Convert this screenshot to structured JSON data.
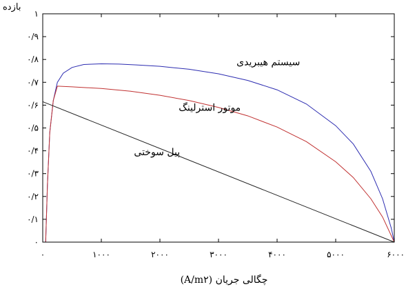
{
  "chart_data": {
    "type": "line",
    "title": "",
    "xlabel": "چگالی جریان (A/m۲)",
    "ylabel": "بازده",
    "xlim": [
      0,
      6000
    ],
    "ylim": [
      0,
      1
    ],
    "grid": false,
    "x_ticks": [
      {
        "value": 0,
        "label": "۰"
      },
      {
        "value": 1000,
        "label": "۱۰۰۰"
      },
      {
        "value": 2000,
        "label": "۲۰۰۰"
      },
      {
        "value": 3000,
        "label": "۳۰۰۰"
      },
      {
        "value": 4000,
        "label": "۴۰۰۰"
      },
      {
        "value": 5000,
        "label": "۵۰۰۰"
      },
      {
        "value": 6000,
        "label": "۶۰۰۰"
      }
    ],
    "y_ticks": [
      {
        "value": 0,
        "label": "۰"
      },
      {
        "value": 0.1,
        "label": "۰/۱"
      },
      {
        "value": 0.2,
        "label": "۰/۲"
      },
      {
        "value": 0.3,
        "label": "۰/۳"
      },
      {
        "value": 0.4,
        "label": "۰/۴"
      },
      {
        "value": 0.5,
        "label": "۰/۵"
      },
      {
        "value": 0.6,
        "label": "۰/۶"
      },
      {
        "value": 0.7,
        "label": "۰/۷"
      },
      {
        "value": 0.8,
        "label": "۰/۸"
      },
      {
        "value": 0.9,
        "label": "۰/۹"
      },
      {
        "value": 1,
        "label": "۱"
      }
    ],
    "series": [
      {
        "name": "سیستم هیبریدی",
        "color": "#2b2bb0",
        "x": [
          50,
          80,
          120,
          180,
          250,
          350,
          500,
          700,
          1000,
          1300,
          1600,
          2000,
          2500,
          3000,
          3500,
          4000,
          4500,
          5000,
          5300,
          5600,
          5800,
          5950,
          6000
        ],
        "y": [
          0.0,
          0.25,
          0.48,
          0.62,
          0.7,
          0.74,
          0.765,
          0.778,
          0.781,
          0.78,
          0.776,
          0.77,
          0.757,
          0.737,
          0.708,
          0.667,
          0.605,
          0.51,
          0.43,
          0.31,
          0.19,
          0.06,
          0.0
        ]
      },
      {
        "name": "موتور استرلینگ",
        "color": "#c03030",
        "x": [
          50,
          80,
          120,
          180,
          250,
          500,
          1000,
          1500,
          2000,
          2500,
          3000,
          3500,
          4000,
          4500,
          5000,
          5300,
          5600,
          5800,
          6000
        ],
        "y": [
          0.0,
          0.25,
          0.48,
          0.62,
          0.683,
          0.68,
          0.673,
          0.661,
          0.643,
          0.62,
          0.59,
          0.553,
          0.504,
          0.44,
          0.352,
          0.283,
          0.19,
          0.11,
          0.0
        ]
      },
      {
        "name": "پیل سوختی",
        "color": "#222222",
        "x": [
          0,
          6000
        ],
        "y": [
          0.615,
          0.0
        ]
      }
    ],
    "annotations": [
      {
        "text": "سیستم هیبریدی",
        "x": 3850,
        "y": 0.775
      },
      {
        "text": "موتور استرلینگ",
        "x": 2850,
        "y": 0.575
      },
      {
        "text": "پیل سوختی",
        "x": 1950,
        "y": 0.38
      }
    ]
  }
}
